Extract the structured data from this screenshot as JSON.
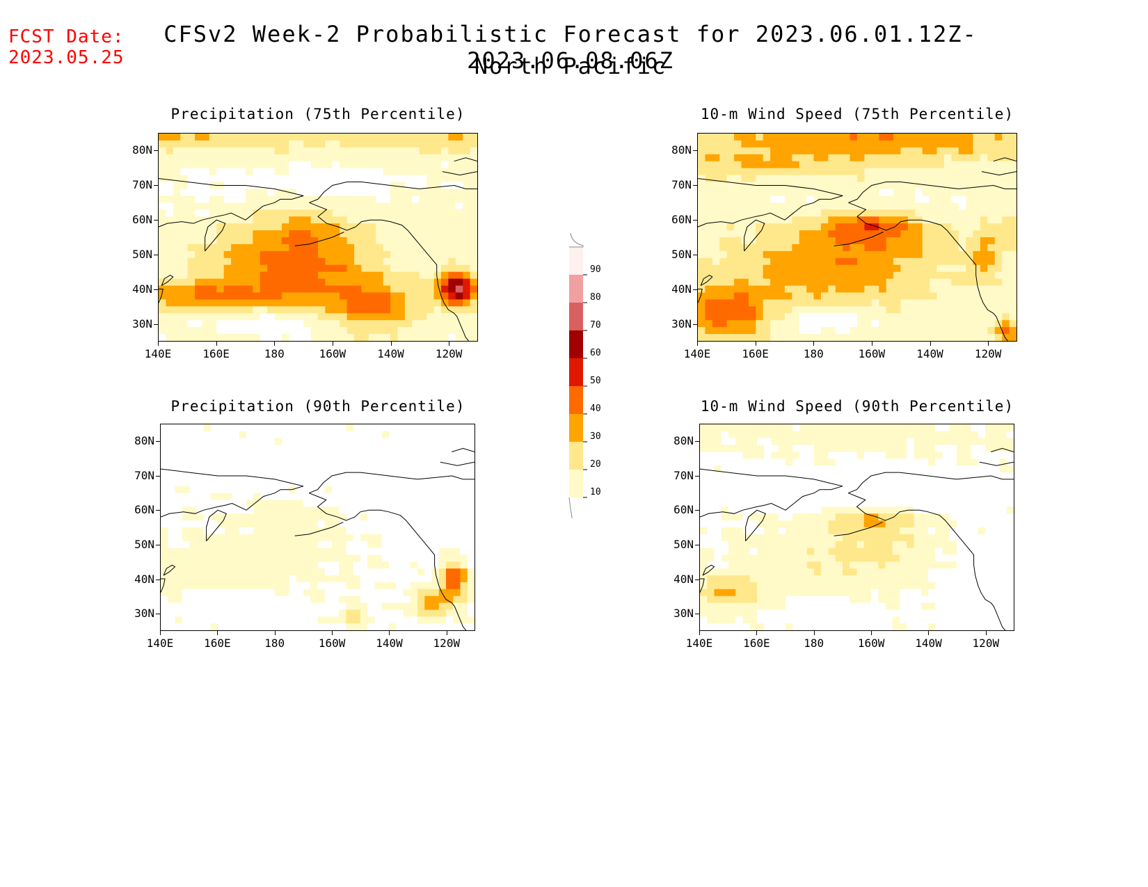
{
  "fcst_date": {
    "label": "FCST Date:",
    "value": "2023.05.25"
  },
  "title": {
    "line1": "CFSv2 Week-2 Probabilistic Forecast for 2023.06.01.12Z-2023.06.08.06Z",
    "line2": "North Pacific"
  },
  "lat_ticks": [
    "80N",
    "70N",
    "60N",
    "50N",
    "40N",
    "30N"
  ],
  "lon_ticks": [
    "140E",
    "160E",
    "180",
    "160W",
    "140W",
    "120W"
  ],
  "panels": [
    {
      "title": "Precipitation (75th Percentile)",
      "variable": "precipitation",
      "percentile": 75
    },
    {
      "title": "10-m Wind Speed (75th Percentile)",
      "variable": "wind",
      "percentile": 75
    },
    {
      "title": "Precipitation (90th Percentile)",
      "variable": "precipitation",
      "percentile": 90
    },
    {
      "title": "10-m Wind Speed (90th Percentile)",
      "variable": "wind",
      "percentile": 90
    }
  ],
  "colorbar": {
    "levels": [
      "10",
      "20",
      "30",
      "40",
      "50",
      "60",
      "70",
      "80",
      "90"
    ],
    "colors": [
      "#fffac8",
      "#ffe88c",
      "#ffa400",
      "#ff6a00",
      "#e01800",
      "#a00000",
      "#d86060",
      "#f0a0a0",
      "#fff0f0"
    ]
  },
  "coastline_color": "#000000"
}
